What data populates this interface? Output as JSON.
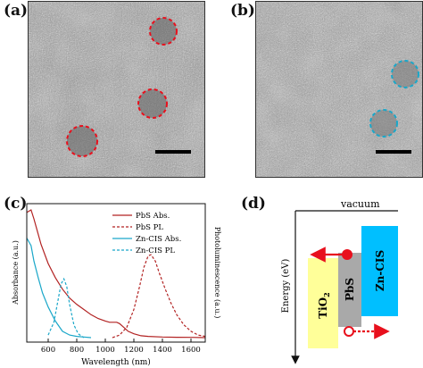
{
  "panels": {
    "a": {
      "label": "(a)"
    },
    "b": {
      "label": "(b)"
    },
    "c": {
      "label": "(c)"
    },
    "d": {
      "label": "(d)"
    }
  },
  "colors": {
    "pbs": "#b22222",
    "zncis": "#1aa7c9",
    "tio2": "#ffff99",
    "pbs_box": "#a9a9a9",
    "zncis_box": "#00bfff",
    "arrow": "#e8101d"
  },
  "chart_data": {
    "type": "line",
    "xlabel": "Wavelength (nm)",
    "ylabel_left": "Absorbance (a.u.)",
    "ylabel_right": "Photoluminescence (a.u.)",
    "xlim": [
      450,
      1700
    ],
    "xticks": [
      "600",
      "800",
      "1000",
      "1200",
      "1400",
      "1600"
    ],
    "xtick_values": [
      600,
      800,
      1000,
      1200,
      1400,
      1600
    ],
    "ylim": [
      0,
      1
    ],
    "series": [
      {
        "name": "PbS Abs.",
        "style": "solid",
        "color": "#b22222",
        "x": [
          450,
          480,
          500,
          550,
          600,
          650,
          700,
          750,
          800,
          850,
          900,
          950,
          1000,
          1030,
          1060,
          1080,
          1100,
          1130,
          1160,
          1200,
          1250,
          1300,
          1400,
          1500,
          1600,
          1700
        ],
        "y": [
          0.98,
          1.0,
          0.93,
          0.73,
          0.58,
          0.47,
          0.38,
          0.31,
          0.26,
          0.22,
          0.18,
          0.15,
          0.13,
          0.12,
          0.12,
          0.12,
          0.11,
          0.08,
          0.05,
          0.03,
          0.015,
          0.01,
          0.005,
          0.003,
          0.002,
          0.0
        ]
      },
      {
        "name": "PbS PL",
        "style": "dashed",
        "color": "#b22222",
        "x": [
          1050,
          1100,
          1150,
          1200,
          1240,
          1270,
          1300,
          1320,
          1350,
          1380,
          1420,
          1460,
          1500,
          1550,
          1600,
          1650,
          1700
        ],
        "y": [
          0.0,
          0.02,
          0.08,
          0.22,
          0.4,
          0.55,
          0.64,
          0.65,
          0.6,
          0.5,
          0.38,
          0.27,
          0.18,
          0.1,
          0.05,
          0.02,
          0.01
        ]
      },
      {
        "name": "Zn-CIS Abs.",
        "style": "solid",
        "color": "#1aa7c9",
        "x": [
          450,
          480,
          500,
          530,
          560,
          600,
          650,
          700,
          750,
          800,
          850,
          900
        ],
        "y": [
          0.78,
          0.72,
          0.6,
          0.47,
          0.35,
          0.24,
          0.13,
          0.05,
          0.02,
          0.01,
          0.005,
          0.0
        ]
      },
      {
        "name": "Zn-CIS PL",
        "style": "dashed",
        "color": "#1aa7c9",
        "x": [
          600,
          640,
          670,
          690,
          710,
          730,
          750,
          780,
          810,
          850
        ],
        "y": [
          0.02,
          0.12,
          0.3,
          0.42,
          0.46,
          0.4,
          0.26,
          0.1,
          0.03,
          0.0
        ]
      }
    ]
  },
  "energy_diagram": {
    "vacuum_label": "vacuum",
    "ylabel": "Energy (eV)",
    "boxes": [
      {
        "name": "TiO",
        "subscript": "2"
      },
      {
        "name": "PbS",
        "subscript": ""
      },
      {
        "name": "Zn-CIS",
        "subscript": ""
      }
    ]
  }
}
